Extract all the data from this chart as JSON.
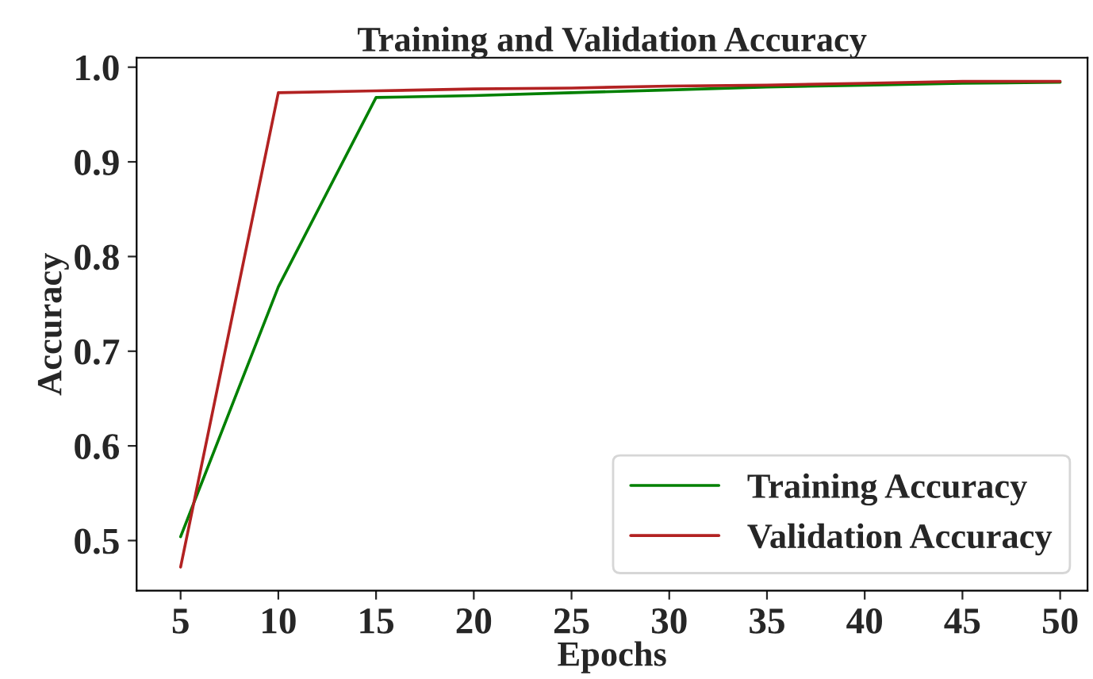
{
  "chart_data": {
    "type": "line",
    "title": "Training and Validation Accuracy",
    "xlabel": "Epochs",
    "ylabel": "Accuracy",
    "x": [
      5,
      10,
      15,
      20,
      25,
      30,
      35,
      40,
      45,
      50
    ],
    "series": [
      {
        "name": "Training Accuracy",
        "color": "#008000",
        "values": [
          0.504,
          0.768,
          0.968,
          0.97,
          0.973,
          0.976,
          0.979,
          0.981,
          0.983,
          0.984
        ]
      },
      {
        "name": "Validation Accuracy",
        "color": "#b22222",
        "values": [
          0.472,
          0.973,
          0.975,
          0.977,
          0.978,
          0.98,
          0.981,
          0.983,
          0.985,
          0.985
        ]
      }
    ],
    "xlim": [
      2.75,
      51.4
    ],
    "ylim": [
      0.447,
      1.01
    ],
    "xticks": [
      5,
      10,
      15,
      20,
      25,
      30,
      35,
      40,
      45,
      50
    ],
    "yticks": [
      0.5,
      0.6,
      0.7,
      0.8,
      0.9,
      {
        "value": 1.0,
        "label": "1.0"
      }
    ],
    "legend": "lower right",
    "grid": false
  }
}
